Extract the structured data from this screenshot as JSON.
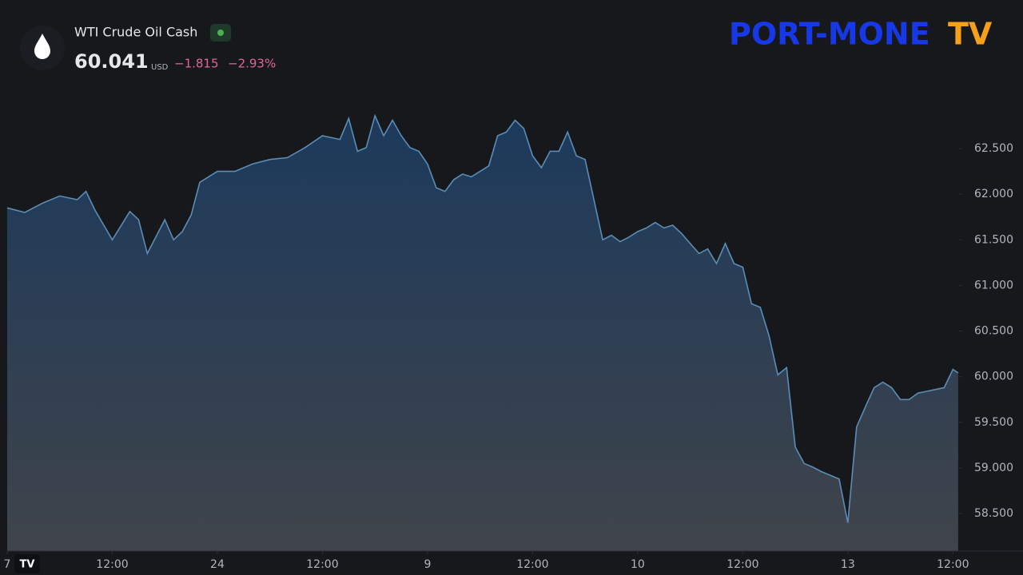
{
  "header": {
    "symbol": "WTI Crude Oil Cash",
    "price": "60.041",
    "currency": "USD",
    "change": "−1.815",
    "change_percent": "−2.93%"
  },
  "logo": {
    "main": "PORT-MONE",
    "suffix": "TV"
  },
  "chart_data": {
    "type": "area",
    "color": "#5b8db5",
    "x": [
      0,
      2,
      4,
      6,
      8,
      9,
      10,
      12,
      14,
      15,
      16,
      18,
      19,
      20,
      21,
      22,
      24,
      26,
      28,
      30,
      32,
      34,
      36,
      38,
      39,
      40,
      41,
      42,
      43,
      44,
      45,
      46,
      47,
      48,
      49,
      50,
      51,
      52,
      53,
      54,
      55,
      56,
      57,
      58,
      59,
      60,
      61,
      62,
      63,
      64,
      65,
      66,
      67,
      68,
      69,
      70,
      71,
      72,
      73,
      74,
      75,
      76,
      77,
      78,
      79,
      80,
      81,
      82,
      83,
      84,
      85,
      86,
      87,
      88,
      89,
      90,
      91,
      92,
      93,
      94,
      95,
      96,
      97,
      98,
      99,
      100,
      101,
      102,
      103,
      104,
      105,
      106,
      107,
      108,
      108.6
    ],
    "values": [
      61.85,
      61.8,
      61.9,
      61.98,
      61.94,
      62.03,
      61.83,
      61.5,
      61.81,
      61.72,
      61.35,
      61.72,
      61.5,
      61.59,
      61.77,
      62.13,
      62.25,
      62.25,
      62.33,
      62.38,
      62.4,
      62.51,
      62.64,
      62.6,
      62.83,
      62.47,
      62.51,
      62.86,
      62.64,
      62.81,
      62.64,
      62.51,
      62.47,
      62.33,
      62.07,
      62.03,
      62.16,
      62.22,
      62.19,
      62.25,
      62.31,
      62.64,
      62.68,
      62.81,
      62.72,
      62.42,
      62.29,
      62.47,
      62.47,
      62.68,
      62.42,
      62.38,
      61.94,
      61.5,
      61.55,
      61.48,
      61.53,
      61.59,
      61.63,
      61.69,
      61.63,
      61.66,
      61.57,
      61.46,
      61.35,
      61.4,
      61.24,
      61.46,
      61.24,
      61.2,
      60.8,
      60.76,
      60.45,
      60.02,
      60.1,
      59.23,
      59.05,
      59.01,
      58.96,
      58.92,
      58.88,
      58.4,
      59.45,
      59.67,
      59.88,
      59.94,
      59.88,
      59.75,
      59.75,
      59.82,
      59.84,
      59.86,
      59.88,
      60.08,
      60.041
    ],
    "xlim": [
      0,
      108.7
    ],
    "xticks": [
      {
        "value": 0,
        "label": "7"
      },
      {
        "value": 12,
        "label": "12:00"
      },
      24,
      {
        "value": 36,
        "label": "12:00"
      },
      {
        "value": 48,
        "label": "9"
      },
      {
        "value": 60,
        "label": "12:00"
      },
      {
        "value": 72,
        "label": "10"
      },
      {
        "value": 84,
        "label": "12:00"
      },
      {
        "value": 96,
        "label": "13"
      },
      {
        "value": 108,
        "label": "12:00"
      }
    ],
    "ylim": [
      58.09,
      64.04
    ],
    "yticks": [
      {
        "value": 58.5,
        "label": "58.500"
      },
      {
        "value": 59,
        "label": "59.000"
      },
      {
        "value": 59.5,
        "label": "59.500"
      },
      {
        "value": 60,
        "label": "60.000"
      },
      {
        "value": 60.5,
        "label": "60.500"
      },
      {
        "value": 61,
        "label": "61.000"
      },
      {
        "value": 61.5,
        "label": "61.500"
      },
      {
        "value": 62,
        "label": "62.000"
      },
      {
        "value": 62.5,
        "label": "62.500"
      }
    ]
  }
}
